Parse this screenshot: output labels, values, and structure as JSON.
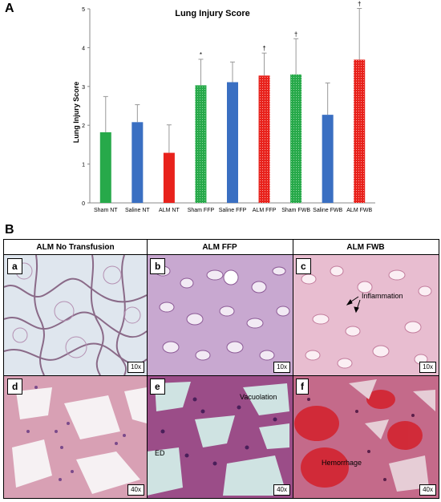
{
  "panel_a_label": "A",
  "panel_b_label": "B",
  "chart_data": {
    "type": "bar",
    "title": "Lung Injury Score",
    "ylabel": "Lung Injury Score",
    "xlabel": "",
    "ylim": [
      0,
      5
    ],
    "yticks": [
      0,
      1,
      2,
      3,
      4,
      5
    ],
    "grid": false,
    "categories": [
      "Sham NT",
      "Saline NT",
      "ALM NT",
      "Sham FFP",
      "Saline FFP",
      "ALM FFP",
      "Sham FWB",
      "Saline FWB",
      "ALM FWB"
    ],
    "values": [
      1.82,
      2.08,
      1.29,
      3.03,
      3.11,
      3.28,
      3.31,
      2.27,
      3.69
    ],
    "errors": [
      0.92,
      0.45,
      0.72,
      0.67,
      0.52,
      0.58,
      0.92,
      0.82,
      1.32
    ],
    "annotations": [
      "",
      "",
      "",
      "*",
      "",
      "†",
      "†",
      "",
      "†"
    ],
    "colors": [
      "#27a94a",
      "#3a6fc2",
      "#e8221c",
      "#27a94a",
      "#3a6fc2",
      "#e8221c",
      "#27a94a",
      "#3a6fc2",
      "#e8221c"
    ],
    "hatched": [
      false,
      false,
      false,
      true,
      false,
      true,
      true,
      false,
      true
    ]
  },
  "micrographs": {
    "columns": [
      "ALM No Transfusion",
      "ALM FFP",
      "ALM FWB"
    ],
    "panels": [
      {
        "label": "a",
        "mag": "10x"
      },
      {
        "label": "b",
        "mag": "10x"
      },
      {
        "label": "c",
        "mag": "10x",
        "annotation": "Inflammation"
      },
      {
        "label": "d",
        "mag": "40x"
      },
      {
        "label": "e",
        "mag": "40x",
        "annotation": "Vacuolation",
        "annotation2": "ED"
      },
      {
        "label": "f",
        "mag": "40x",
        "annotation": "Hemorrhage"
      }
    ]
  }
}
